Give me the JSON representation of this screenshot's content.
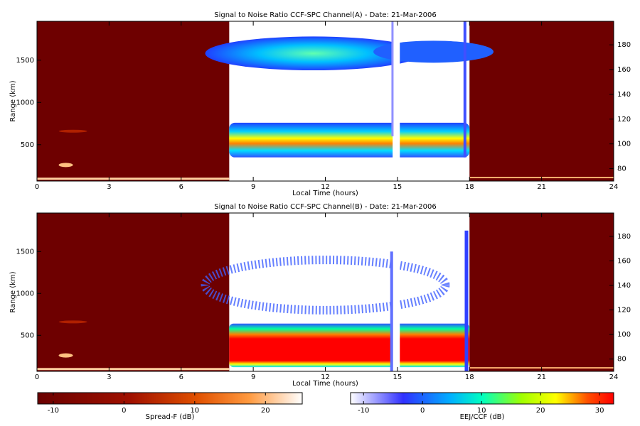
{
  "chart_data": [
    {
      "type": "heatmap",
      "title": "Signal to Noise Ratio CCF-SPC Channel(A) - Date: 21-Mar-2006",
      "xlabel": "Local Time (hours)",
      "ylabel": "Range (km)",
      "xlim": [
        0,
        24
      ],
      "xticks": [
        0,
        3,
        6,
        9,
        12,
        15,
        18,
        21,
        24
      ],
      "ylim": [
        70,
        1960
      ],
      "yticks": [
        500,
        1000,
        1500
      ],
      "y2lim": [
        70,
        199
      ],
      "y2ticks": [
        80,
        100,
        120,
        140,
        160,
        180
      ]
    },
    {
      "type": "heatmap",
      "title": "Signal to Noise Ratio CCF-SPC Channel(B) - Date: 21-Mar-2006",
      "xlabel": "Local Time (hours)",
      "ylabel": "Range (km)",
      "xlim": [
        0,
        24
      ],
      "xticks": [
        0,
        3,
        6,
        9,
        12,
        15,
        18,
        21,
        24
      ],
      "ylim": [
        70,
        1960
      ],
      "yticks": [
        500,
        1000,
        1500
      ],
      "y2lim": [
        70,
        199
      ],
      "y2ticks": [
        80,
        100,
        120,
        140,
        160,
        180
      ]
    },
    {
      "type": "colorbar",
      "label": "Spread-F (dB)",
      "xlim": [
        -12.2,
        25.2
      ],
      "xticks": [
        -10,
        0,
        10,
        20
      ]
    },
    {
      "type": "colorbar",
      "label": "EEJ/CCF (dB)",
      "xlim": [
        -12.2,
        32.4
      ],
      "xticks": [
        -10,
        0,
        10,
        20,
        30
      ]
    }
  ]
}
